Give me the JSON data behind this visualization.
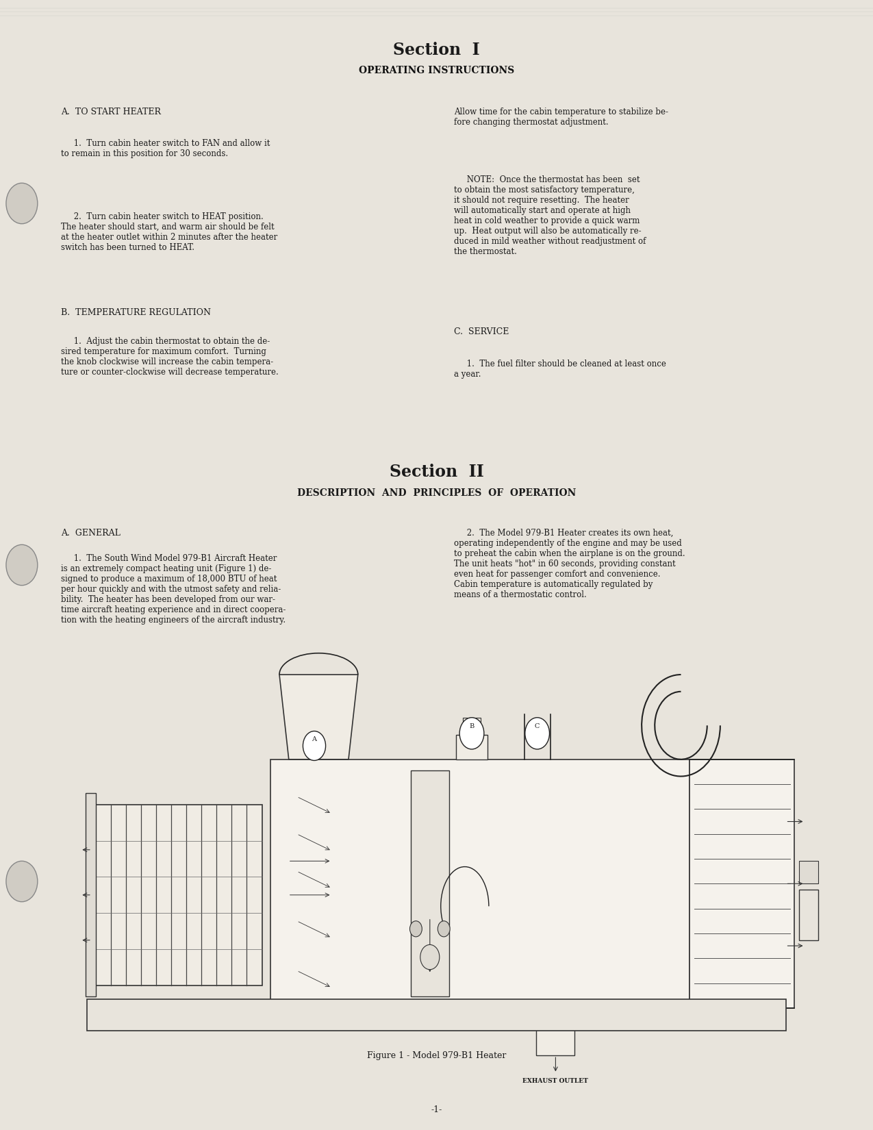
{
  "page_bg": "#e8e4dc",
  "title1": "Section  I",
  "subtitle1": "OPERATING INSTRUCTIONS",
  "section1_heading_a": "A.  TO START HEATER",
  "section1_a_para1": "     1.  Turn cabin heater switch to FAN and allow it\nto remain in this position for 30 seconds.",
  "section1_a_para2": "     2.  Turn cabin heater switch to HEAT position.\nThe heater should start, and warm air should be felt\nat the heater outlet within 2 minutes after the heater\nswitch has been turned to HEAT.",
  "section1_heading_b": "B.  TEMPERATURE REGULATION",
  "section1_b_para1": "     1.  Adjust the cabin thermostat to obtain the de-\nsired temperature for maximum comfort.  Turning\nthe knob clockwise will increase the cabin tempera-\nture or counter-clockwise will decrease temperature.",
  "section1_right_para1": "Allow time for the cabin temperature to stabilize be-\nfore changing thermostat adjustment.",
  "section1_right_note": "     NOTE:  Once the thermostat has been  set\nto obtain the most satisfactory temperature,\nit should not require resetting.  The heater\nwill automatically start and operate at high\nheat in cold weather to provide a quick warm\nup.  Heat output will also be automatically re-\nduced in mild weather without readjustment of\nthe thermostat.",
  "section1_heading_c": "C.  SERVICE",
  "section1_c_para1": "     1.  The fuel filter should be cleaned at least once\na year.",
  "title2": "Section  II",
  "subtitle2": "DESCRIPTION  AND  PRINCIPLES  OF  OPERATION",
  "section2_heading_a": "A.  GENERAL",
  "section2_a_left": "     1.  The South Wind Model 979-B1 Aircraft Heater\nis an extremely compact heating unit (Figure 1) de-\nsigned to produce a maximum of 18,000 BTU of heat\nper hour quickly and with the utmost safety and relia-\nbility.  The heater has been developed from our war-\ntime aircraft heating experience and in direct coopera-\ntion with the heating engineers of the aircraft industry.",
  "section2_a_right": "     2.  The Model 979-B1 Heater creates its own heat,\noperating independently of the engine and may be used\nto preheat the cabin when the airplane is on the ground.\nThe unit heats \"hot\" in 60 seconds, providing constant\neven heat for passenger comfort and convenience.\nCabin temperature is automatically regulated by\nmeans of a thermostatic control.",
  "figure_caption": "Figure 1 - Model 979-B1 Heater",
  "page_number": "-1-",
  "text_color": "#1a1a1a"
}
